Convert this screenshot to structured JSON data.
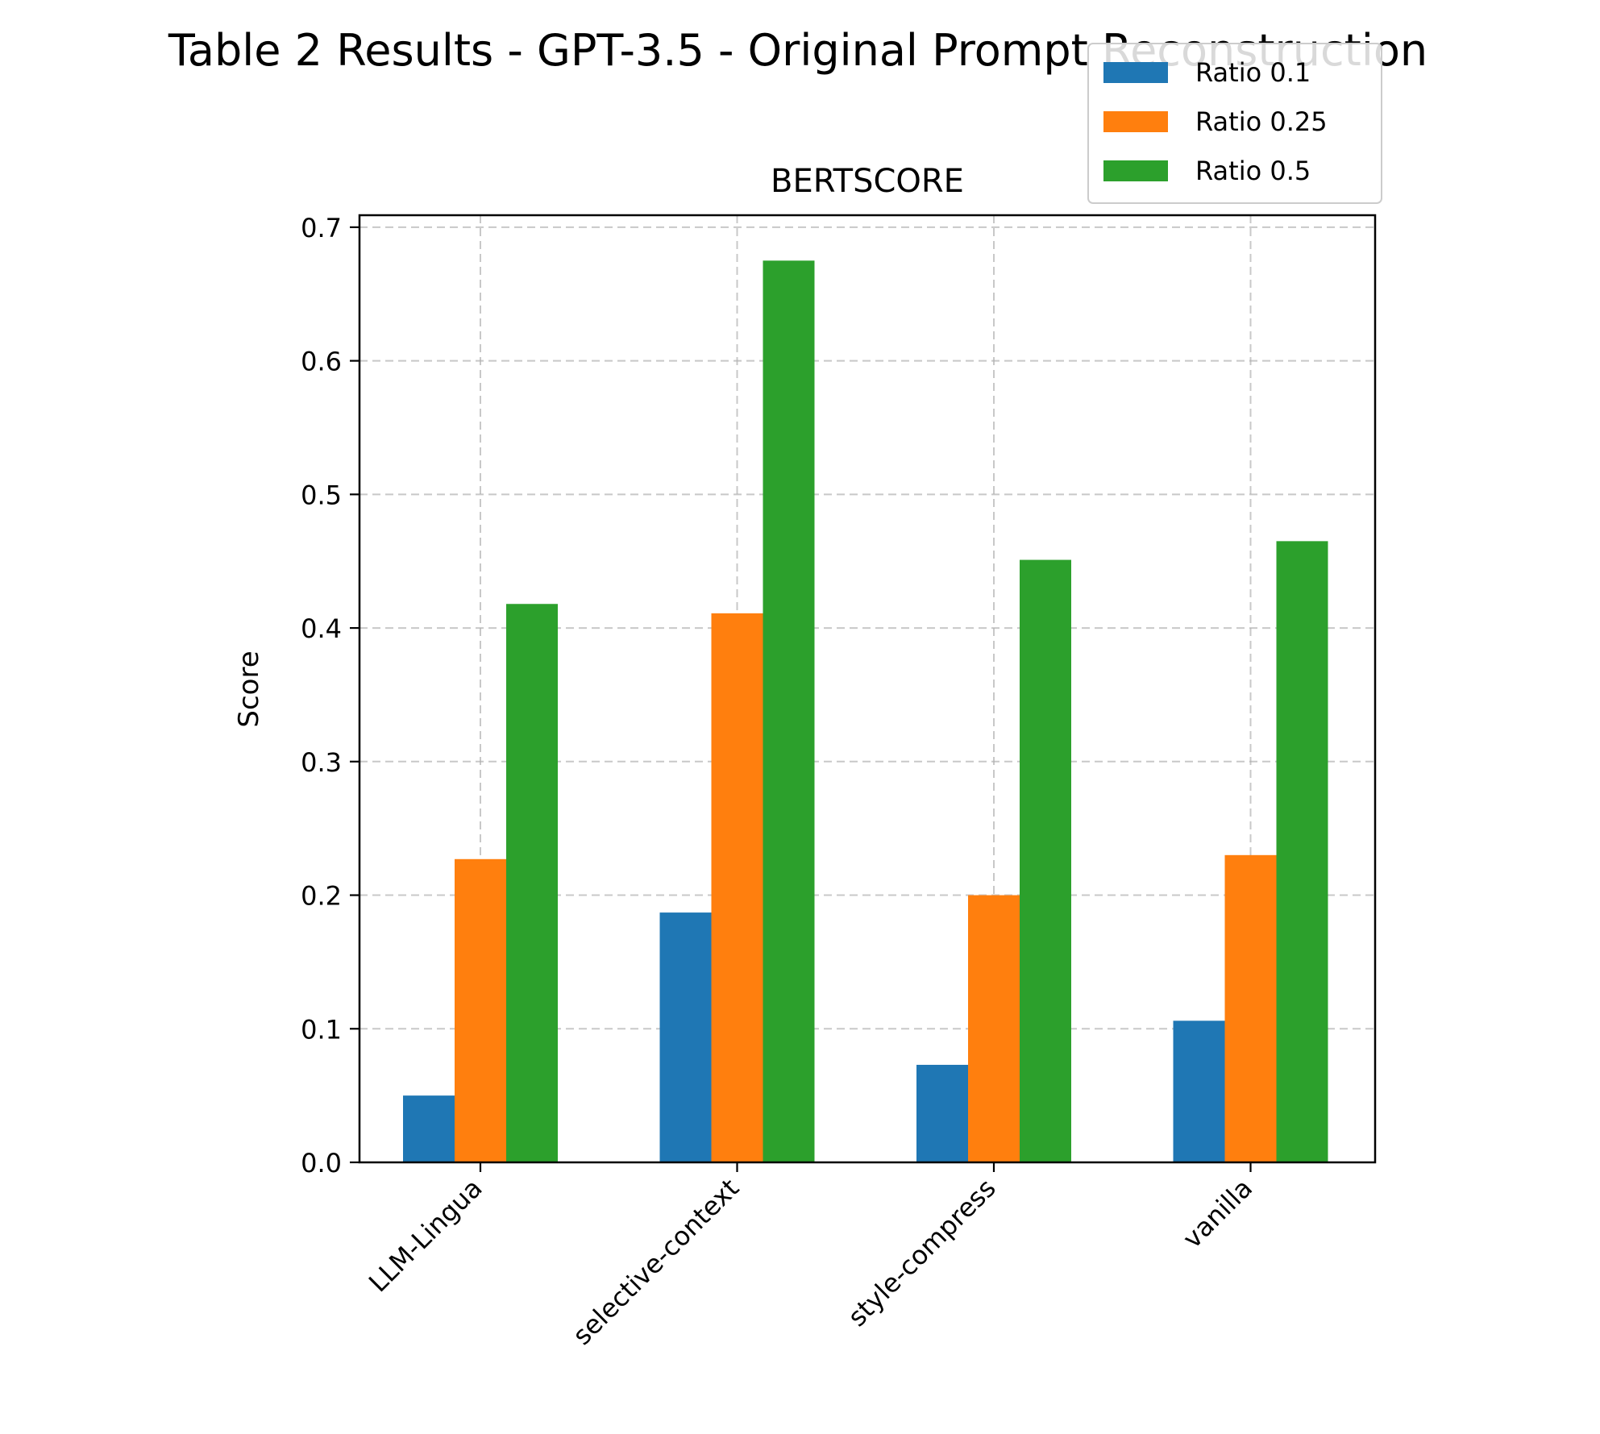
{
  "chart_data": {
    "type": "bar",
    "suptitle": "Table 2 Results - GPT-3.5 - Original Prompt Reconstruction",
    "title": "BERTSCORE",
    "xlabel": "",
    "ylabel": "Score",
    "ylim": [
      0,
      0.7
    ],
    "yticks": [
      "0.0",
      "0.1",
      "0.2",
      "0.3",
      "0.4",
      "0.5",
      "0.6",
      "0.7"
    ],
    "grid": true,
    "legend_position": "top-right",
    "categories": [
      "LLM-Lingua",
      "selective-context",
      "style-compress",
      "vanilla"
    ],
    "series": [
      {
        "name": "Ratio 0.1",
        "color": "#1f77b4",
        "values": [
          0.05,
          0.187,
          0.073,
          0.106
        ]
      },
      {
        "name": "Ratio 0.25",
        "color": "#ff7f0e",
        "values": [
          0.227,
          0.411,
          0.2,
          0.23
        ]
      },
      {
        "name": "Ratio 0.5",
        "color": "#2ca02c",
        "values": [
          0.418,
          0.675,
          0.451,
          0.465
        ]
      }
    ]
  }
}
